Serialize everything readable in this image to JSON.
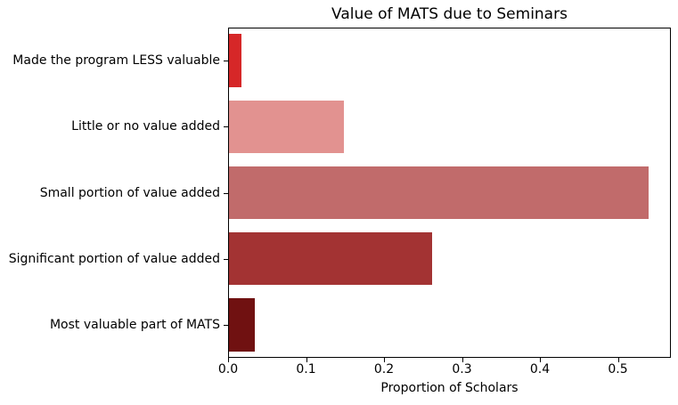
{
  "chart_data": {
    "type": "bar",
    "orientation": "horizontal",
    "title": "Value of MATS due to Seminars",
    "xlabel": "Proportion of Scholars",
    "ylabel": "",
    "categories": [
      "Made the program LESS valuable",
      "Little or no value added",
      "Small portion of value added",
      "Significant portion of value added",
      "Most valuable part of MATS"
    ],
    "values": [
      0.016,
      0.148,
      0.541,
      0.262,
      0.033
    ],
    "bar_colors": [
      "#d62728",
      "#e29290",
      "#c16b6b",
      "#a33333",
      "#701111"
    ],
    "xlim": [
      0,
      0.568
    ],
    "xticks": [
      0.0,
      0.1,
      0.2,
      0.3,
      0.4,
      0.5
    ],
    "xtick_labels": [
      "0.0",
      "0.1",
      "0.2",
      "0.3",
      "0.4",
      "0.5"
    ],
    "grid": false,
    "legend": null,
    "background_color": "#ffffff",
    "spine_color": "#000000",
    "bar_height_fraction": 0.8
  }
}
